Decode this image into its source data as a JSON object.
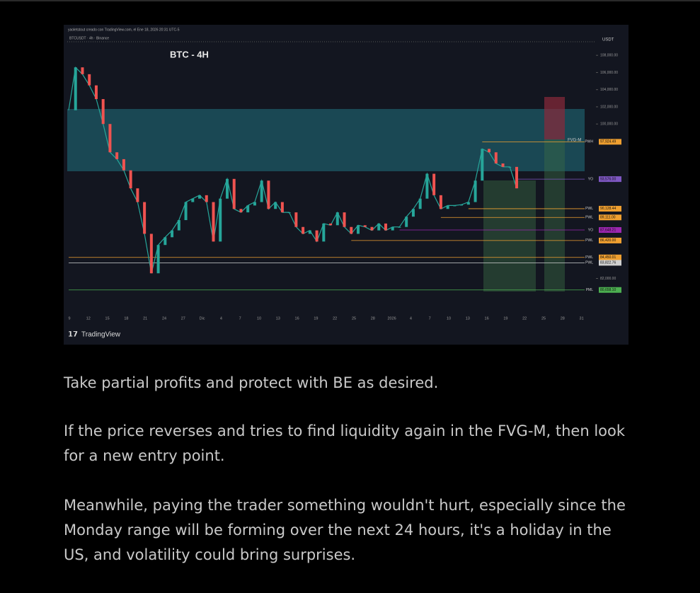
{
  "chart_image": {
    "credit": "yaoletstout creado con TradingView.com, el Ene 18, 2026 20:31 UTC-5",
    "symbol": "BTCUSDT · 4h · Binance",
    "currency": "USDT",
    "title": "BTC - 4H",
    "brand": "TradingView",
    "zone_label": "FVG-M",
    "ylim": [
      78000,
      109500
    ],
    "yticks": [
      {
        "value": 108000,
        "label": "108,000.00"
      },
      {
        "value": 106000,
        "label": "106,000.00"
      },
      {
        "value": 104000,
        "label": "104,000.00"
      },
      {
        "value": 102000,
        "label": "102,000.00"
      },
      {
        "value": 100000,
        "label": "100,000.00"
      },
      {
        "value": 82000,
        "label": "82,000.00"
      }
    ],
    "x_labels": [
      "9",
      "12",
      "15",
      "18",
      "21",
      "24",
      "27",
      "Dic",
      "4",
      "7",
      "10",
      "13",
      "16",
      "19",
      "22",
      "25",
      "28",
      "2026",
      "4",
      "7",
      "10",
      "13",
      "16",
      "19",
      "22",
      "25",
      "28",
      "31"
    ],
    "price": [
      101600,
      106600,
      105800,
      104500,
      102900,
      100000,
      96700,
      95900,
      94600,
      92500,
      90900,
      87200,
      82600,
      85900,
      86800,
      87600,
      88800,
      90900,
      91300,
      91700,
      90900,
      86300,
      91300,
      93600,
      90100,
      89700,
      90500,
      90900,
      93400,
      90100,
      90900,
      89700,
      89700,
      88000,
      87200,
      87600,
      86300,
      88400,
      88200,
      89700,
      88000,
      87200,
      88200,
      88000,
      87600,
      88400,
      87600,
      88000,
      88000,
      89200,
      90100,
      91300,
      94200,
      91700,
      90100,
      90500,
      90500,
      90600,
      90900,
      93400,
      97100,
      96700,
      95400,
      95000,
      95000,
      92500
    ],
    "levels": [
      {
        "tag": "PWH",
        "price": {
          "value": 97924.49,
          "label": "97,924.49"
        },
        "color": "#f0a030"
      },
      {
        "tag": "YO",
        "price": {
          "value": 93576,
          "label": "93,576.00"
        },
        "color": "#7e57c2"
      },
      {
        "tag": "PWL",
        "price": {
          "value": 90128.44,
          "label": "90,128.44"
        },
        "color": "#f0a030"
      },
      {
        "tag": "PWL",
        "price": {
          "value": 89111,
          "label": "89,111.00"
        },
        "color": "#f0a030"
      },
      {
        "tag": "YO",
        "price": {
          "value": 87648.21,
          "label": "87,648.21"
        },
        "color": "#9c27b0"
      },
      {
        "tag": "PWL",
        "price": {
          "value": 86420,
          "label": "86,420.00"
        },
        "color": "#f0a030"
      },
      {
        "tag": "PWL",
        "price": {
          "value": 84450.01,
          "label": "84,450.01"
        },
        "color": "#f0a030"
      },
      {
        "tag": "PWL",
        "price": {
          "value": 83822.76,
          "label": "83,822.76"
        },
        "color": "#d0d0d0"
      },
      {
        "tag": "PML",
        "price": {
          "value": 80658.1,
          "label": "80,658.10"
        },
        "color": "#4caf50"
      }
    ]
  },
  "paragraphs": [
    "Take partial profits and protect with BE as desired.",
    "If the price reverses and tries to find liquidity again in the FVG-M, then look for a new entry point.",
    "Meanwhile, paying the trader something wouldn't hurt, especially since the Monday range will be forming over the next 24 hours, it's a holiday in the US, and volatility could bring surprises."
  ]
}
